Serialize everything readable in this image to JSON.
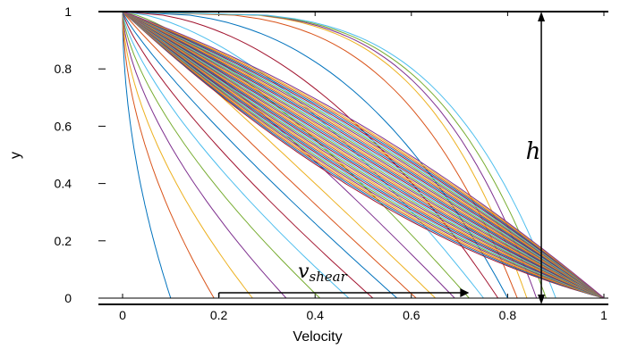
{
  "chart_data": {
    "type": "line",
    "title": "",
    "xlabel": "Velocity",
    "ylabel": "y",
    "xlim": [
      -0.05,
      1.01
    ],
    "ylim": [
      0,
      1
    ],
    "x_ticks": [
      "0",
      "0.2",
      "0.4",
      "0.6",
      "0.8",
      "1"
    ],
    "y_ticks": [
      "0",
      "0.2",
      "0.4",
      "0.6",
      "0.8",
      "1"
    ],
    "grid": false,
    "legend": "none",
    "series_count": 60,
    "series_description_values": {
      "variable": "y",
      "profiles_start": [
        0,
        1
      ],
      "profiles_end": [
        1,
        0
      ],
      "bottom_intercepts_first": [
        0.1,
        0.19,
        0.27,
        0.34,
        0.41,
        0.47,
        0.52,
        0.57,
        0.61,
        0.65,
        0.69,
        0.72,
        0.75,
        0.78,
        0.8,
        0.82,
        0.84,
        0.86,
        0.88,
        0.9
      ]
    },
    "annotations": {
      "v_label": "v",
      "v_subscript": "shear",
      "v_arrow_x": [
        0.2,
        0.72
      ],
      "h_label": "h",
      "h_arrow_x": 0.87
    },
    "colors": [
      "#0072bd",
      "#d95319",
      "#edb120",
      "#7e2f8e",
      "#77ac30",
      "#4dbeee",
      "#a2142f"
    ]
  }
}
